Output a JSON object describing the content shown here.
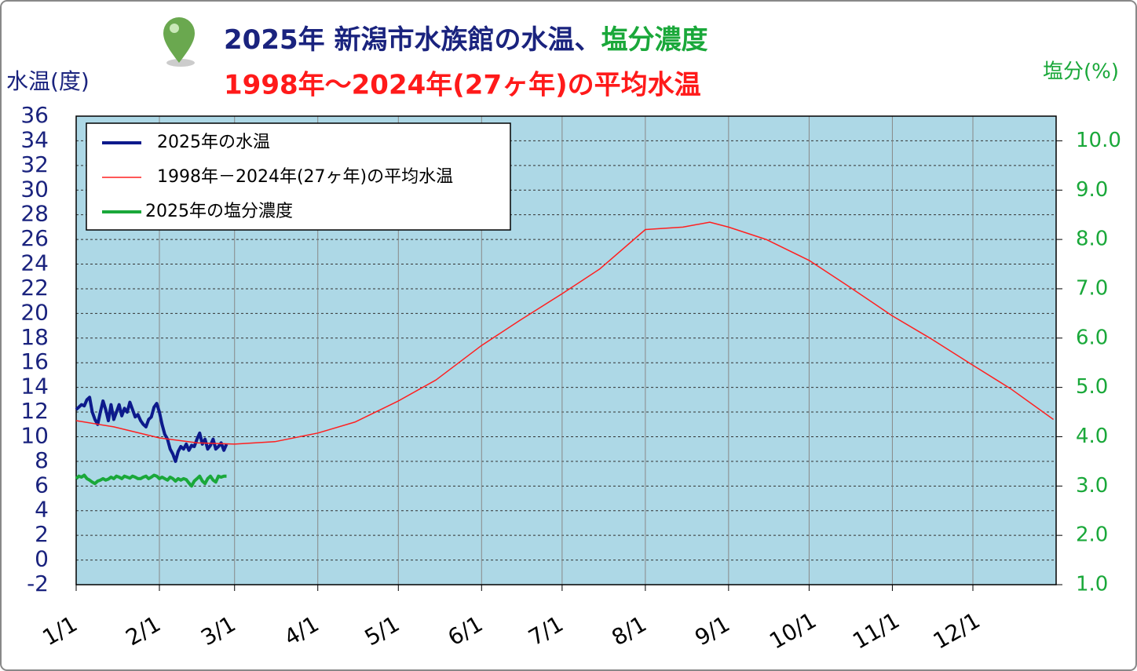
{
  "chart_data": {
    "type": "line",
    "title": "2025年 新潟市水族館の水温、",
    "title_accent": "塩分濃度",
    "subtitle": "1998年～2024年(27ヶ年)の平均水温",
    "y_label": "水温(度)",
    "y2_label": "塩分(%)",
    "xlim": [
      0,
      365
    ],
    "xticks": [
      {
        "value": 0,
        "label": "1/1"
      },
      {
        "value": 31,
        "label": "2/1"
      },
      {
        "value": 59,
        "label": "3/1"
      },
      {
        "value": 90,
        "label": "4/1"
      },
      {
        "value": 120,
        "label": "5/1"
      },
      {
        "value": 151,
        "label": "6/1"
      },
      {
        "value": 181,
        "label": "7/1"
      },
      {
        "value": 212,
        "label": "8/1"
      },
      {
        "value": 243,
        "label": "9/1"
      },
      {
        "value": 273,
        "label": "10/1"
      },
      {
        "value": 304,
        "label": "11/1"
      },
      {
        "value": 334,
        "label": "12/1"
      }
    ],
    "ylim": [
      -2,
      36
    ],
    "yticks": [
      -2,
      0,
      2,
      4,
      6,
      8,
      10,
      12,
      14,
      16,
      18,
      20,
      22,
      24,
      26,
      28,
      30,
      32,
      34,
      36
    ],
    "y2lim": [
      1,
      10.5
    ],
    "y2ticks": [
      {
        "value": 1,
        "label": "1.0"
      },
      {
        "value": 2,
        "label": "2.0"
      },
      {
        "value": 3,
        "label": "3.0"
      },
      {
        "value": 4,
        "label": "4.0"
      },
      {
        "value": 5,
        "label": "5.0"
      },
      {
        "value": 6,
        "label": "6.0"
      },
      {
        "value": 7,
        "label": "7.0"
      },
      {
        "value": 8,
        "label": "8.0"
      },
      {
        "value": 9,
        "label": "9.0"
      },
      {
        "value": 10,
        "label": "10.0"
      }
    ],
    "grid": true,
    "legend": "upper left",
    "series": [
      {
        "name": "2025年の水温",
        "color": "#0d1a8c",
        "width": 4,
        "x": [
          0,
          1,
          2,
          3,
          4,
          5,
          6,
          7,
          8,
          9,
          10,
          11,
          12,
          13,
          14,
          15,
          16,
          17,
          18,
          19,
          20,
          21,
          22,
          23,
          24,
          25,
          26,
          27,
          28,
          29,
          30,
          31,
          32,
          33,
          34,
          35,
          36,
          37,
          38,
          39,
          40,
          41,
          42,
          43,
          44,
          45,
          46,
          47,
          48,
          49,
          50,
          51,
          52,
          53,
          54,
          55,
          56
        ],
        "values": [
          12.2,
          12.4,
          12.6,
          12.5,
          13.0,
          13.2,
          12.0,
          11.4,
          11.0,
          12.0,
          12.9,
          12.2,
          11.3,
          12.6,
          11.4,
          12.0,
          12.6,
          11.7,
          12.3,
          12.0,
          12.8,
          12.2,
          11.6,
          11.8,
          11.3,
          11.0,
          10.8,
          11.4,
          11.6,
          12.4,
          12.7,
          12.0,
          11.0,
          10.2,
          9.8,
          9.0,
          8.6,
          8.0,
          8.8,
          9.2,
          9.0,
          9.4,
          8.9,
          9.3,
          9.2,
          9.8,
          10.3,
          9.4,
          9.8,
          9.0,
          9.3,
          9.8,
          9.0,
          9.2,
          9.5,
          8.9,
          9.4
        ]
      },
      {
        "name": "1998年－2024年(27ヶ年)の平均水温",
        "color": "#ff2020",
        "width": 1.5,
        "x": [
          0,
          14,
          31,
          45,
          59,
          74,
          90,
          104,
          120,
          134,
          151,
          165,
          181,
          195,
          212,
          226,
          236,
          243,
          257,
          273,
          287,
          304,
          318,
          334,
          348,
          364
        ],
        "values": [
          11.3,
          10.8,
          9.9,
          9.5,
          9.4,
          9.6,
          10.3,
          11.2,
          12.9,
          14.6,
          17.4,
          19.4,
          21.6,
          23.6,
          26.8,
          27.0,
          27.4,
          27.0,
          26.0,
          24.3,
          22.3,
          19.8,
          18.0,
          15.8,
          13.9,
          11.4
        ]
      },
      {
        "name": "2025年の塩分濃度",
        "color": "#1aa83a",
        "width": 4,
        "axis": "y2",
        "x": [
          0,
          1,
          2,
          3,
          4,
          5,
          6,
          7,
          8,
          9,
          10,
          11,
          12,
          13,
          14,
          15,
          16,
          17,
          18,
          19,
          20,
          21,
          22,
          23,
          24,
          25,
          26,
          27,
          28,
          29,
          30,
          31,
          32,
          33,
          34,
          35,
          36,
          37,
          38,
          39,
          40,
          41,
          42,
          43,
          44,
          45,
          46,
          47,
          48,
          49,
          50,
          51,
          52,
          53,
          54,
          55,
          56
        ],
        "values": [
          3.15,
          3.2,
          3.18,
          3.22,
          3.15,
          3.12,
          3.08,
          3.05,
          3.1,
          3.12,
          3.15,
          3.12,
          3.14,
          3.18,
          3.15,
          3.2,
          3.18,
          3.15,
          3.2,
          3.18,
          3.16,
          3.2,
          3.18,
          3.15,
          3.15,
          3.18,
          3.2,
          3.15,
          3.18,
          3.22,
          3.2,
          3.15,
          3.18,
          3.15,
          3.12,
          3.18,
          3.15,
          3.1,
          3.15,
          3.12,
          3.15,
          3.13,
          3.06,
          3.0,
          3.1,
          3.15,
          3.2,
          3.1,
          3.05,
          3.15,
          3.2,
          3.12,
          3.08,
          3.2,
          3.18,
          3.2,
          3.2
        ]
      }
    ]
  }
}
